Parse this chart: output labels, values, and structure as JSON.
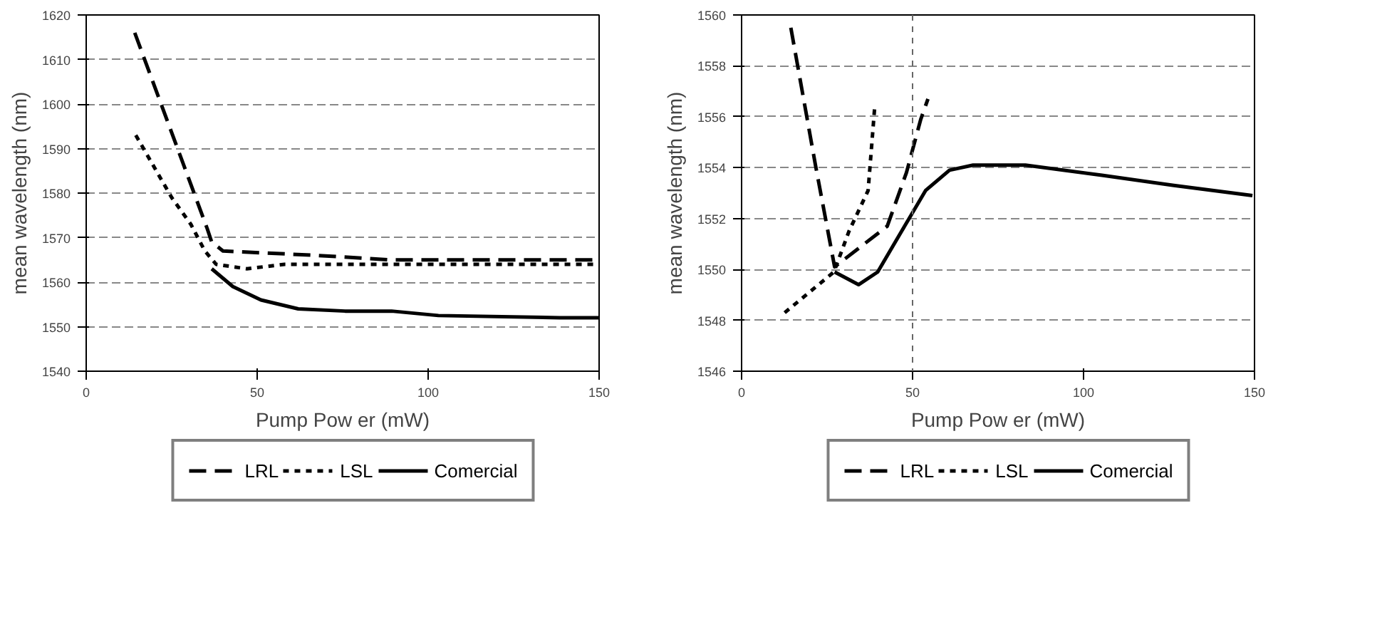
{
  "chart_data": [
    {
      "type": "line",
      "xlabel": "Pump Pow er (mW)",
      "ylabel": "mean wavelength (nm)",
      "xlim": [
        0,
        150
      ],
      "ylim": [
        1540,
        1620
      ],
      "xticks": [
        0,
        50,
        100,
        150
      ],
      "yticks": [
        1540,
        1550,
        1560,
        1570,
        1580,
        1590,
        1600,
        1610,
        1620
      ],
      "grid": "y",
      "legend": "bottom",
      "series": [
        {
          "name": "LRL",
          "color": "#000000",
          "line_style": "dashed",
          "x": [
            14.2,
            35.4,
            36.7,
            40,
            67.5,
            89,
            138.5,
            150
          ],
          "values": [
            1616,
            1572,
            1569,
            1567,
            1566,
            1565,
            1565,
            1565
          ]
        },
        {
          "name": "LSL",
          "color": "#000000",
          "line_style": "dotted",
          "x": [
            14.5,
            25,
            30.6,
            34.7,
            38,
            47,
            58,
            78.4,
            150
          ],
          "values": [
            1593,
            1579,
            1573,
            1567,
            1564,
            1563,
            1564,
            1564,
            1564
          ]
        },
        {
          "name": "Comercial",
          "color": "#000000",
          "line_style": "solid",
          "x": [
            36.7,
            42.9,
            51.1,
            62,
            75.7,
            89.3,
            103,
            138.5,
            150
          ],
          "values": [
            1563,
            1559,
            1556,
            1554,
            1553.5,
            1553.5,
            1552.5,
            1552,
            1552
          ]
        }
      ]
    },
    {
      "type": "line",
      "xlabel": "Pump Pow er (mW)",
      "ylabel": "mean wavelength (nm)",
      "xlim": [
        0,
        150
      ],
      "ylim": [
        1546,
        1560
      ],
      "xticks": [
        0,
        50,
        100,
        150
      ],
      "yticks": [
        1546,
        1548,
        1550,
        1552,
        1554,
        1556,
        1558,
        1560
      ],
      "grid": "y",
      "legend": "bottom",
      "ref_lines": [
        {
          "axis": "x",
          "value": 50,
          "label": null,
          "line_style": "dotted"
        }
      ],
      "series": [
        {
          "name": "LRL",
          "color": "#000000",
          "line_style": "dashed",
          "x": [
            14.4,
            21.6,
            27.2,
            42.6,
            48.2,
            52.4,
            54.5
          ],
          "values": [
            1559.5,
            1554.1,
            1550.1,
            1551.7,
            1553.8,
            1555.9,
            1556.7
          ]
        },
        {
          "name": "LSL",
          "color": "#000000",
          "line_style": "dotted",
          "x": [
            12.6,
            27,
            31.4,
            37,
            39
          ],
          "values": [
            1548.3,
            1549.9,
            1551.5,
            1553.1,
            1556.5
          ]
        },
        {
          "name": "Comercial",
          "color": "#000000",
          "line_style": "solid",
          "x": [
            27.2,
            34.2,
            39.8,
            46.8,
            53.8,
            60.8,
            67.7,
            83,
            105.4,
            126.4,
            149.4
          ],
          "values": [
            1549.9,
            1549.4,
            1549.9,
            1551.5,
            1553.1,
            1553.9,
            1554.1,
            1554.1,
            1553.7,
            1553.3,
            1552.9
          ]
        }
      ]
    }
  ]
}
